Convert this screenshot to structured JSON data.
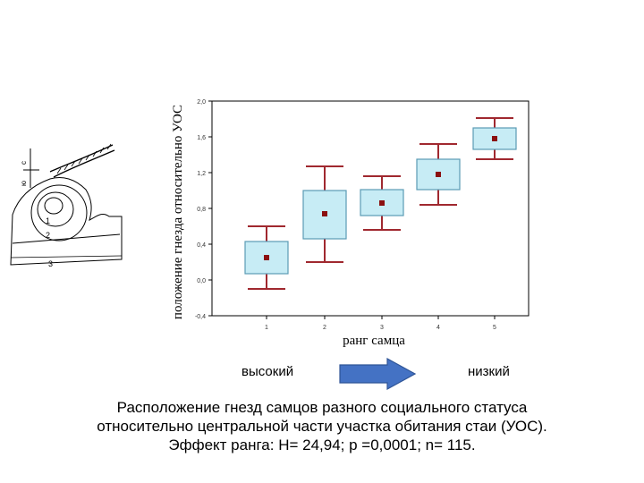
{
  "map": {
    "labels": [
      "с",
      "ю",
      "1",
      "2",
      "3"
    ]
  },
  "chart_data": {
    "type": "box",
    "ylabel": "положение гнезда относительно УОС",
    "xlabel": "ранг самца",
    "ylim": [
      -0.4,
      2.0
    ],
    "yticks": [
      "2,0",
      "1,6",
      "1,2",
      "0,8",
      "0,4",
      "0,0",
      "-0,4"
    ],
    "ytick_values": [
      2.0,
      1.6,
      1.2,
      0.8,
      0.4,
      0.0,
      -0.4
    ],
    "categories": [
      "1",
      "2",
      "3",
      "4",
      "5"
    ],
    "series": [
      {
        "mean": 0.25,
        "box_low": 0.07,
        "box_high": 0.43,
        "whisker_low": -0.1,
        "whisker_high": 0.6
      },
      {
        "mean": 0.74,
        "box_low": 0.46,
        "box_high": 1.0,
        "whisker_low": 0.2,
        "whisker_high": 1.27
      },
      {
        "mean": 0.86,
        "box_low": 0.72,
        "box_high": 1.01,
        "whisker_low": 0.56,
        "whisker_high": 1.16
      },
      {
        "mean": 1.18,
        "box_low": 1.01,
        "box_high": 1.35,
        "whisker_low": 0.84,
        "whisker_high": 1.52
      },
      {
        "mean": 1.58,
        "box_low": 1.46,
        "box_high": 1.7,
        "whisker_low": 1.35,
        "whisker_high": 1.81
      }
    ],
    "box_fill": "#c7ecf5",
    "box_stroke": "#5b9bb5",
    "whisker_color": "#a0282f",
    "mean_color": "#8b1010"
  },
  "rank_labels": {
    "high": "высокий",
    "low": "низкий"
  },
  "arrow_color": "#4472c4",
  "caption": {
    "line1": "Расположение гнезд самцов  разного социального статуса",
    "line2": "относительно центральной части участка обитания стаи (УОС).",
    "line3": "Эффект ранга: H= 24,94; p =0,0001;  n= 115."
  }
}
